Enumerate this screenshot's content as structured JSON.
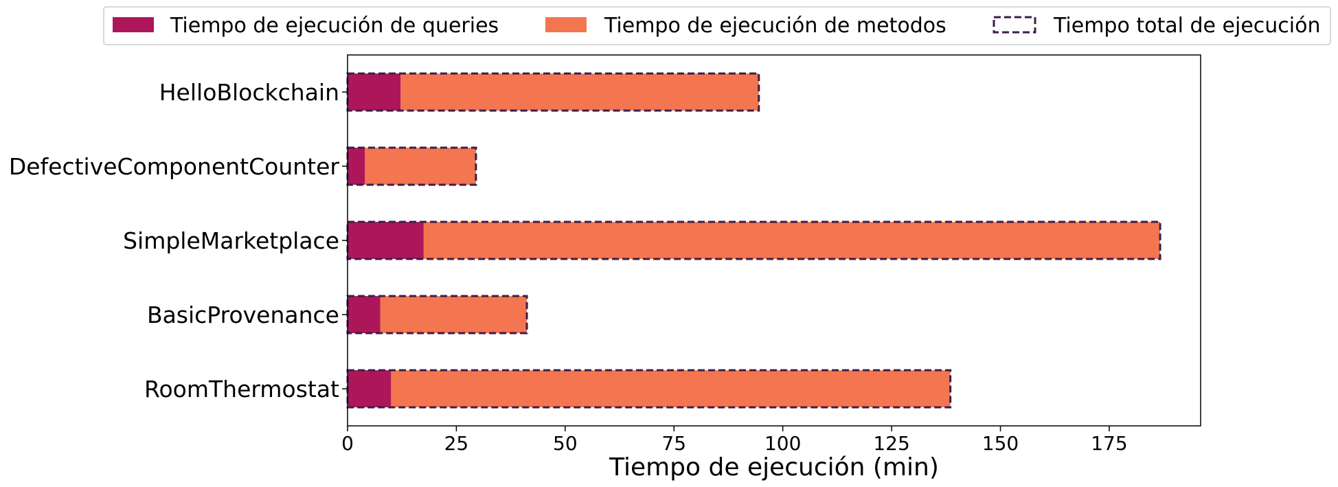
{
  "chart_data": {
    "type": "bar",
    "orientation": "horizontal",
    "stacked": true,
    "categories": [
      "HelloBlockchain",
      "DefectiveComponentCounter",
      "SimpleMarketplace",
      "BasicProvenance",
      "RoomThermostat"
    ],
    "series": [
      {
        "name": "Tiempo de ejecución de queries",
        "color": "#ad1759",
        "values": [
          12.2,
          4.0,
          17.5,
          7.5,
          10.0
        ]
      },
      {
        "name": "Tiempo de ejecución de metodos",
        "color": "#f37651",
        "values": [
          82.3,
          25.5,
          169.2,
          33.7,
          128.5
        ]
      }
    ],
    "totals": {
      "name": "Tiempo total de ejecución",
      "color": "#3a1e4a",
      "values": [
        94.5,
        29.5,
        186.7,
        41.2,
        138.5
      ]
    },
    "xlabel": "Tiempo de ejecución (min)",
    "ylabel": "",
    "xlim": [
      0,
      196
    ],
    "xticks": [
      0,
      25,
      50,
      75,
      100,
      125,
      150,
      175
    ],
    "grid": false,
    "legend": "top-center"
  }
}
